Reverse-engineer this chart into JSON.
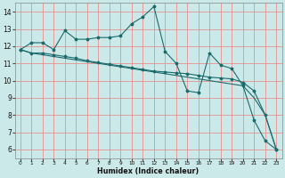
{
  "title": "",
  "xlabel": "Humidex (Indice chaleur)",
  "xlim": [
    -0.5,
    23.5
  ],
  "ylim": [
    5.5,
    14.5
  ],
  "yticks": [
    6,
    7,
    8,
    9,
    10,
    11,
    12,
    13,
    14
  ],
  "xticks": [
    0,
    1,
    2,
    3,
    4,
    5,
    6,
    7,
    8,
    9,
    10,
    11,
    12,
    13,
    14,
    15,
    16,
    17,
    18,
    19,
    20,
    21,
    22,
    23
  ],
  "background_color": "#cce9e9",
  "grid_color": "#e89090",
  "line_color": "#1a6b6b",
  "line1": [
    11.8,
    12.2,
    12.2,
    11.8,
    12.9,
    12.4,
    12.4,
    12.5,
    12.5,
    12.6,
    13.3,
    13.7,
    14.3,
    11.7,
    11.0,
    9.4,
    9.3,
    11.6,
    10.9,
    10.7,
    9.7,
    7.7,
    6.5,
    6.0
  ],
  "line2": [
    11.8,
    11.6,
    11.6,
    11.5,
    11.4,
    11.3,
    11.15,
    11.05,
    10.95,
    10.85,
    10.75,
    10.65,
    10.55,
    10.5,
    10.45,
    10.4,
    10.3,
    10.2,
    10.15,
    10.1,
    9.9,
    9.4,
    8.0,
    6.0
  ],
  "line3": [
    11.8,
    11.6,
    11.5,
    11.4,
    11.3,
    11.2,
    11.1,
    11.0,
    10.9,
    10.8,
    10.7,
    10.6,
    10.5,
    10.4,
    10.3,
    10.2,
    10.1,
    10.0,
    9.9,
    9.8,
    9.7,
    9.0,
    8.0,
    6.0
  ],
  "xtick_fontsize": 4.2,
  "ytick_fontsize": 5.5,
  "xlabel_fontsize": 5.8
}
